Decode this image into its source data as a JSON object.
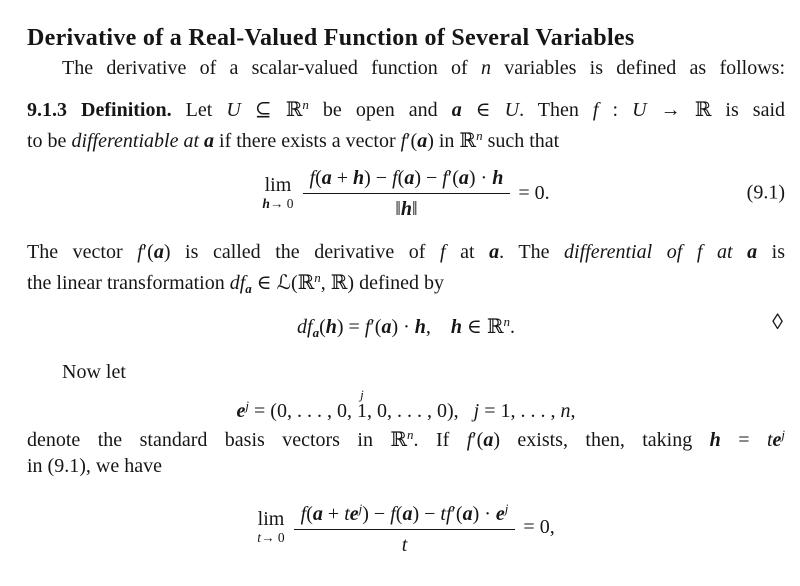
{
  "colors": {
    "background": "#ffffff",
    "text": "#161616"
  },
  "title": "Derivative of a Real-Valued Function of Several Variables",
  "p1": {
    "line1": [
      {
        "s": "rm",
        "t": "The derivative of a scalar-valued function of "
      },
      {
        "s": "it",
        "t": "n"
      },
      {
        "s": "rm",
        "t": " variables is defined as follows:"
      }
    ]
  },
  "definition": {
    "line1": [
      {
        "s": "b",
        "t": "9.1.3 Definition."
      },
      {
        "s": "rm",
        "t": " Let "
      },
      {
        "s": "it",
        "t": "U"
      },
      {
        "s": "rm",
        "t": " ⊆ ℝ"
      },
      {
        "s": "sup-it",
        "t": "n"
      },
      {
        "s": "rm",
        "t": " be open and "
      },
      {
        "s": "bi",
        "t": "a"
      },
      {
        "s": "rm",
        "t": " ∈ "
      },
      {
        "s": "it",
        "t": "U"
      },
      {
        "s": "rm",
        "t": ". Then "
      },
      {
        "s": "it",
        "t": "f"
      },
      {
        "s": "rm",
        "t": " : "
      },
      {
        "s": "it",
        "t": "U"
      },
      {
        "s": "rm",
        "t": " → ℝ is said"
      }
    ],
    "line2": [
      {
        "s": "rm",
        "t": "to be "
      },
      {
        "s": "it",
        "t": "differentiable at "
      },
      {
        "s": "bi",
        "t": "a"
      },
      {
        "s": "rm",
        "t": " if there exists a vector "
      },
      {
        "s": "it",
        "t": "f"
      },
      {
        "s": "rm",
        "t": "′("
      },
      {
        "s": "bi",
        "t": "a"
      },
      {
        "s": "rm",
        "t": ") in ℝ"
      },
      {
        "s": "sup-it",
        "t": "n"
      },
      {
        "s": "rm",
        "t": " such that"
      }
    ]
  },
  "eq1": {
    "lim_word": "lim",
    "lim_sub": [
      {
        "s": "bi",
        "t": "h"
      },
      {
        "s": "rm",
        "t": "→ 0"
      }
    ],
    "numerator": [
      {
        "s": "it",
        "t": "f"
      },
      {
        "s": "rm",
        "t": "("
      },
      {
        "s": "bi",
        "t": "a"
      },
      {
        "s": "rm",
        "t": " + "
      },
      {
        "s": "bi",
        "t": "h"
      },
      {
        "s": "rm",
        "t": ") − "
      },
      {
        "s": "it",
        "t": "f"
      },
      {
        "s": "rm",
        "t": "("
      },
      {
        "s": "bi",
        "t": "a"
      },
      {
        "s": "rm",
        "t": ") − "
      },
      {
        "s": "it",
        "t": "f"
      },
      {
        "s": "rm",
        "t": "′("
      },
      {
        "s": "bi",
        "t": "a"
      },
      {
        "s": "rm",
        "t": ") · "
      },
      {
        "s": "bi",
        "t": "h"
      }
    ],
    "denominator": [
      {
        "s": "rm",
        "t": "‖"
      },
      {
        "s": "bi",
        "t": "h"
      },
      {
        "s": "rm",
        "t": "‖"
      }
    ],
    "rhs": [
      {
        "s": "rm",
        "t": "= 0."
      }
    ],
    "tag": "(9.1)"
  },
  "p3": {
    "line1": [
      {
        "s": "rm",
        "t": "The vector "
      },
      {
        "s": "it",
        "t": "f"
      },
      {
        "s": "rm",
        "t": "′("
      },
      {
        "s": "bi",
        "t": "a"
      },
      {
        "s": "rm",
        "t": ") is called the derivative of "
      },
      {
        "s": "it",
        "t": "f"
      },
      {
        "s": "rm",
        "t": " at "
      },
      {
        "s": "bi",
        "t": "a"
      },
      {
        "s": "rm",
        "t": ". The "
      },
      {
        "s": "it",
        "t": "differential of f at "
      },
      {
        "s": "bi",
        "t": "a"
      },
      {
        "s": "rm",
        "t": " is"
      }
    ],
    "line2": [
      {
        "s": "rm",
        "t": "the linear transformation "
      },
      {
        "s": "it",
        "t": "df"
      },
      {
        "s": "sub-bi",
        "t": "a"
      },
      {
        "s": "rm",
        "t": " ∈ ℒ(ℝ"
      },
      {
        "s": "sup-it",
        "t": "n"
      },
      {
        "s": "rm",
        "t": ", ℝ) defined by"
      }
    ]
  },
  "eq2": {
    "line": [
      {
        "s": "it",
        "t": "df"
      },
      {
        "s": "sub-bi",
        "t": "a"
      },
      {
        "s": "rm",
        "t": "("
      },
      {
        "s": "bi",
        "t": "h"
      },
      {
        "s": "rm",
        "t": ") = "
      },
      {
        "s": "it",
        "t": "f"
      },
      {
        "s": "rm",
        "t": "′("
      },
      {
        "s": "bi",
        "t": "a"
      },
      {
        "s": "rm",
        "t": ") · "
      },
      {
        "s": "bi",
        "t": "h"
      },
      {
        "s": "rm",
        "t": ", "
      },
      {
        "s": "bi",
        "t": "h"
      },
      {
        "s": "rm",
        "t": " ∈ ℝ"
      },
      {
        "s": "sup-it",
        "t": "n"
      },
      {
        "s": "rm",
        "t": "."
      }
    ],
    "end_mark": "◊"
  },
  "p4": {
    "text": "Now let"
  },
  "eq3": {
    "line": [
      {
        "s": "bi",
        "t": "e"
      },
      {
        "s": "sup-it",
        "t": "j"
      },
      {
        "s": "rm",
        "t": " = (0, . . . , 0, "
      },
      {
        "s": "overset",
        "t": "1",
        "o": "j"
      },
      {
        "s": "rm",
        "t": ", 0, . . . , 0),  "
      },
      {
        "s": "it",
        "t": "j"
      },
      {
        "s": "rm",
        "t": " = 1, . . . , "
      },
      {
        "s": "it",
        "t": "n"
      },
      {
        "s": "rm",
        "t": ","
      }
    ]
  },
  "p5": {
    "line1": [
      {
        "s": "rm",
        "t": "denote the standard basis vectors in ℝ"
      },
      {
        "s": "sup-it",
        "t": "n"
      },
      {
        "s": "rm",
        "t": ". If "
      },
      {
        "s": "it",
        "t": "f"
      },
      {
        "s": "rm",
        "t": "′("
      },
      {
        "s": "bi",
        "t": "a"
      },
      {
        "s": "rm",
        "t": ") exists, then, taking "
      },
      {
        "s": "bi",
        "t": "h"
      },
      {
        "s": "rm",
        "t": " = "
      },
      {
        "s": "it",
        "t": "t"
      },
      {
        "s": "bi",
        "t": "e"
      },
      {
        "s": "sup-it",
        "t": "j"
      }
    ],
    "line2": [
      {
        "s": "rm",
        "t": "in (9.1), we have"
      }
    ]
  },
  "eq4": {
    "lim_word": "lim",
    "lim_sub": [
      {
        "s": "it",
        "t": "t"
      },
      {
        "s": "rm",
        "t": "→ 0"
      }
    ],
    "numerator": [
      {
        "s": "it",
        "t": "f"
      },
      {
        "s": "rm",
        "t": "("
      },
      {
        "s": "bi",
        "t": "a"
      },
      {
        "s": "rm",
        "t": " + "
      },
      {
        "s": "it",
        "t": "t"
      },
      {
        "s": "bi",
        "t": "e"
      },
      {
        "s": "sup-it",
        "t": "j"
      },
      {
        "s": "rm",
        "t": ") − "
      },
      {
        "s": "it",
        "t": "f"
      },
      {
        "s": "rm",
        "t": "("
      },
      {
        "s": "bi",
        "t": "a"
      },
      {
        "s": "rm",
        "t": ") − "
      },
      {
        "s": "it",
        "t": "t"
      },
      {
        "s": "it",
        "t": "f"
      },
      {
        "s": "rm",
        "t": "′("
      },
      {
        "s": "bi",
        "t": "a"
      },
      {
        "s": "rm",
        "t": ") · "
      },
      {
        "s": "bi",
        "t": "e"
      },
      {
        "s": "sup-it",
        "t": "j"
      }
    ],
    "denominator": [
      {
        "s": "it",
        "t": "t"
      }
    ],
    "rhs": [
      {
        "s": "rm",
        "t": "= 0,"
      }
    ]
  }
}
